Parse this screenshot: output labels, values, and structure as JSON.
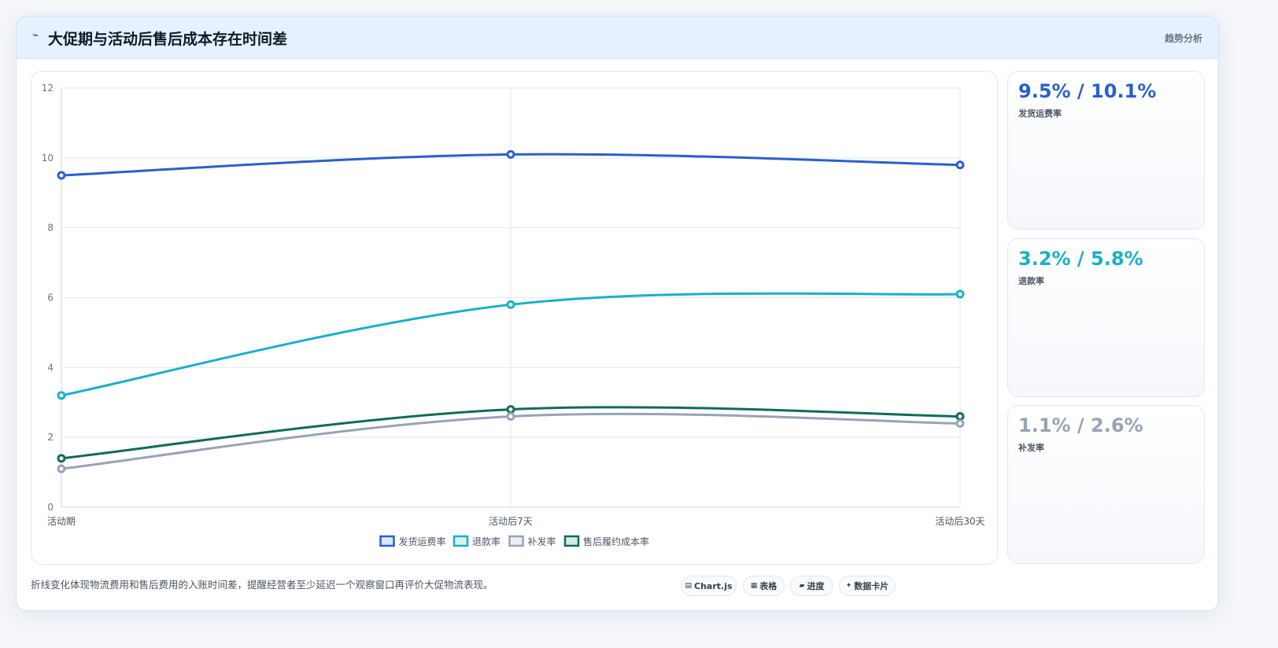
{
  "header": {
    "icon": "bolt-icon",
    "title": "大促期与活动后售后成本存在时间差",
    "tag": "趋势分析"
  },
  "chart_data": {
    "type": "line",
    "categories": [
      "活动期",
      "活动后7天",
      "活动后30天"
    ],
    "ylim": [
      0,
      12
    ],
    "yticks": [
      "0",
      "2",
      "4",
      "6",
      "8",
      "10",
      "12"
    ],
    "grid": true,
    "legend_position": "bottom",
    "series": [
      {
        "name": "发货运费率",
        "values": [
          9.5,
          10.1,
          9.8
        ],
        "color": "#2a5fcf"
      },
      {
        "name": "退款率",
        "values": [
          3.2,
          5.8,
          6.1
        ],
        "color": "#19b0c9"
      },
      {
        "name": "补发率",
        "values": [
          1.1,
          2.6,
          2.4
        ],
        "color": "#97a3b6"
      },
      {
        "name": "售后履约成本率",
        "values": [
          1.4,
          2.8,
          2.6
        ],
        "color": "#0f6b5c"
      }
    ]
  },
  "kpis": [
    {
      "value": "9.5% / 10.1%",
      "label": "发货运费率",
      "color": "#2a5fcf"
    },
    {
      "value": "3.2% / 5.8%",
      "label": "退款率",
      "color": "#19b0c9"
    },
    {
      "value": "1.1% / 2.6%",
      "label": "补发率",
      "color": "#97a3b6"
    }
  ],
  "footnote": "折线变化体现物流费用和售后费用的入账时间差，提醒经营者至少延迟一个观察窗口再评价大促物流表现。",
  "buttons": [
    {
      "icon": "chart-icon",
      "label": "Chart.js"
    },
    {
      "icon": "table-icon",
      "label": "表格"
    },
    {
      "icon": "progress-icon",
      "label": "进度"
    },
    {
      "icon": "card-icon",
      "label": "数据卡片"
    }
  ]
}
